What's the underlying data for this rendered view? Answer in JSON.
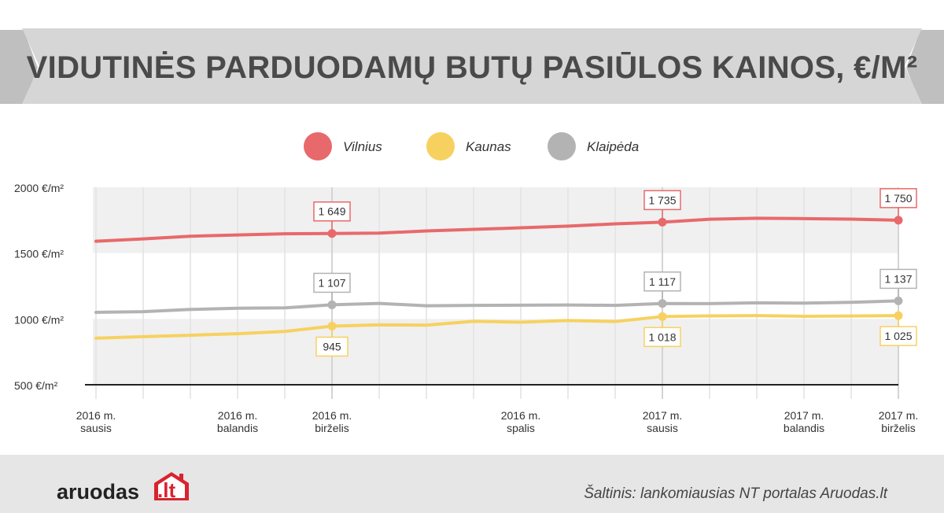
{
  "colors": {
    "vilnius": "#e8696b",
    "kaunas": "#f7d160",
    "klaipeda": "#b3b3b3",
    "logo_accent": "#d9232e"
  },
  "banner": {
    "title": "VIDUTINĖS PARDUODAMŲ BUTŲ PASIŪLOS KAINOS, €/M²"
  },
  "footer": {
    "logo_text": "aruodas",
    "logo_suffix": ".lt",
    "logo_icon": "house-icon",
    "source": "Šaltinis: lankomiausias NT portalas Aruodas.lt"
  },
  "chart_data": {
    "type": "line",
    "title": "VIDUTINĖS PARDUODAMŲ BUTŲ PASIŪLOS KAINOS, €/M²",
    "xlabel": "",
    "ylabel": "",
    "ylim": [
      500,
      2000
    ],
    "yticks": [
      {
        "value": 2000,
        "label": "2000 €/m²"
      },
      {
        "value": 1500,
        "label": "1500 €/m²"
      },
      {
        "value": 1000,
        "label": "1000 €/m²"
      },
      {
        "value": 500,
        "label": "500 €/m²"
      }
    ],
    "legend_position": "top-center",
    "x": [
      "2016-01",
      "2016-02",
      "2016-03",
      "2016-04",
      "2016-05",
      "2016-06",
      "2016-07",
      "2016-08",
      "2016-09",
      "2016-10",
      "2016-11",
      "2016-12",
      "2017-01",
      "2017-02",
      "2017-03",
      "2017-04",
      "2017-05",
      "2017-06"
    ],
    "xtick_labels": [
      {
        "index": 0,
        "lines": [
          "2016 m.",
          "sausis"
        ]
      },
      {
        "index": 3,
        "lines": [
          "2016 m.",
          "balandis"
        ]
      },
      {
        "index": 5,
        "lines": [
          "2016 m.",
          "birželis"
        ]
      },
      {
        "index": 9,
        "lines": [
          "2016 m.",
          "spalis"
        ]
      },
      {
        "index": 12,
        "lines": [
          "2017 m.",
          "sausis"
        ]
      },
      {
        "index": 15,
        "lines": [
          "2017 m.",
          "balandis"
        ]
      },
      {
        "index": 17,
        "lines": [
          "2017 m.",
          "birželis"
        ]
      }
    ],
    "series": [
      {
        "name": "Vilnius",
        "color_key": "vilnius",
        "values": [
          1590,
          1608,
          1628,
          1638,
          1647,
          1649,
          1652,
          1668,
          1680,
          1692,
          1705,
          1722,
          1735,
          1757,
          1765,
          1762,
          1758,
          1750
        ],
        "labels": [
          {
            "index": 5,
            "text": "1 649",
            "position": "above"
          },
          {
            "index": 12,
            "text": "1 735",
            "position": "above"
          },
          {
            "index": 17,
            "text": "1 750",
            "position": "above"
          }
        ]
      },
      {
        "name": "Kaunas",
        "color_key": "kaunas",
        "values": [
          854,
          865,
          876,
          888,
          905,
          945,
          955,
          953,
          982,
          975,
          988,
          980,
          1018,
          1023,
          1025,
          1020,
          1022,
          1025
        ],
        "labels": [
          {
            "index": 5,
            "text": "945",
            "position": "below"
          },
          {
            "index": 12,
            "text": "1 018",
            "position": "below"
          },
          {
            "index": 17,
            "text": "1 025",
            "position": "below"
          }
        ]
      },
      {
        "name": "Klaipėda",
        "color_key": "klaipeda",
        "values": [
          1050,
          1055,
          1072,
          1081,
          1084,
          1107,
          1118,
          1100,
          1103,
          1104,
          1106,
          1103,
          1117,
          1116,
          1122,
          1120,
          1126,
          1137
        ],
        "labels": [
          {
            "index": 5,
            "text": "1 107",
            "position": "above"
          },
          {
            "index": 12,
            "text": "1 117",
            "position": "above"
          },
          {
            "index": 17,
            "text": "1 137",
            "position": "above"
          }
        ]
      }
    ]
  }
}
